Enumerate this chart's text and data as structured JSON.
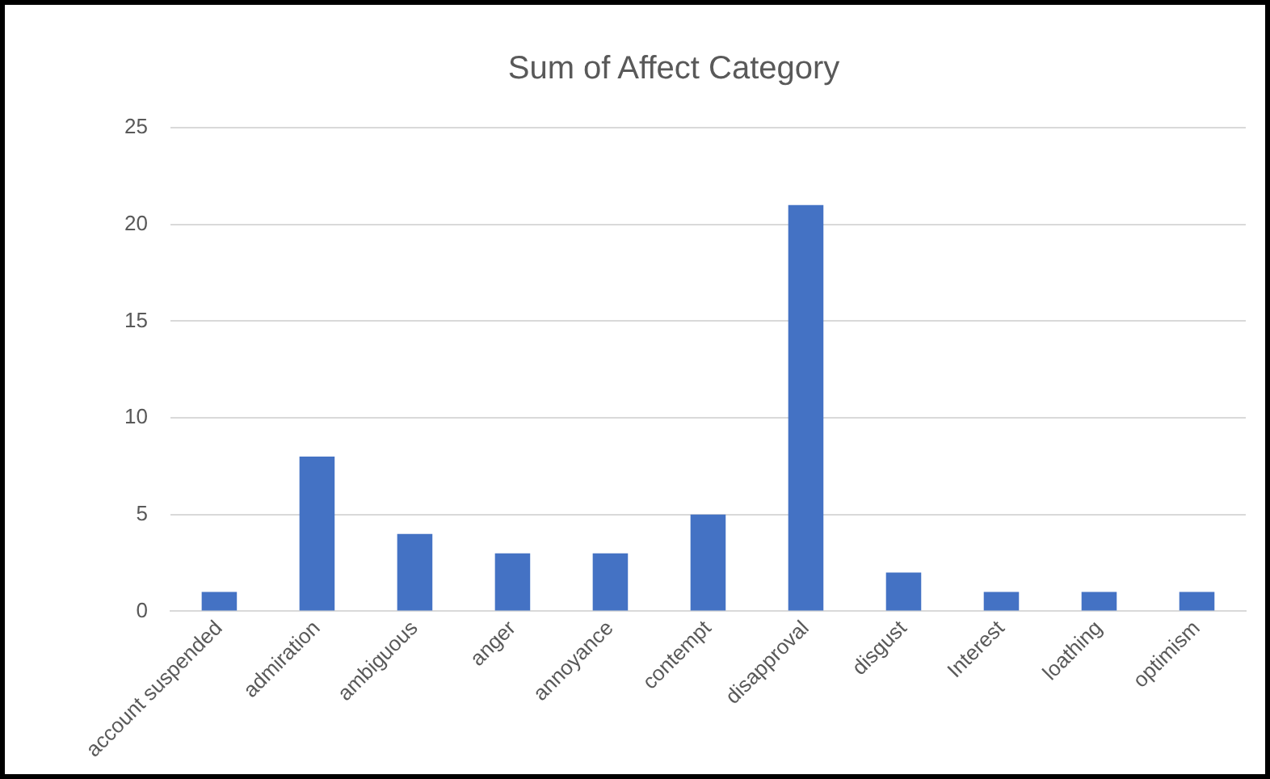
{
  "chart_data": {
    "type": "bar",
    "title": "Sum of Affect Category",
    "categories": [
      "account suspended",
      "admiration",
      "ambiguous",
      "anger",
      "annoyance",
      "contempt",
      "disapproval",
      "disgust",
      "Interest",
      "loathing",
      "optimism"
    ],
    "values": [
      1,
      8,
      4,
      3,
      3,
      5,
      21,
      2,
      1,
      1,
      1
    ],
    "color": "#4472c4",
    "ylim": [
      0,
      25
    ],
    "yticks": [
      0,
      5,
      10,
      15,
      20,
      25
    ],
    "grid": "y",
    "legend": false
  }
}
